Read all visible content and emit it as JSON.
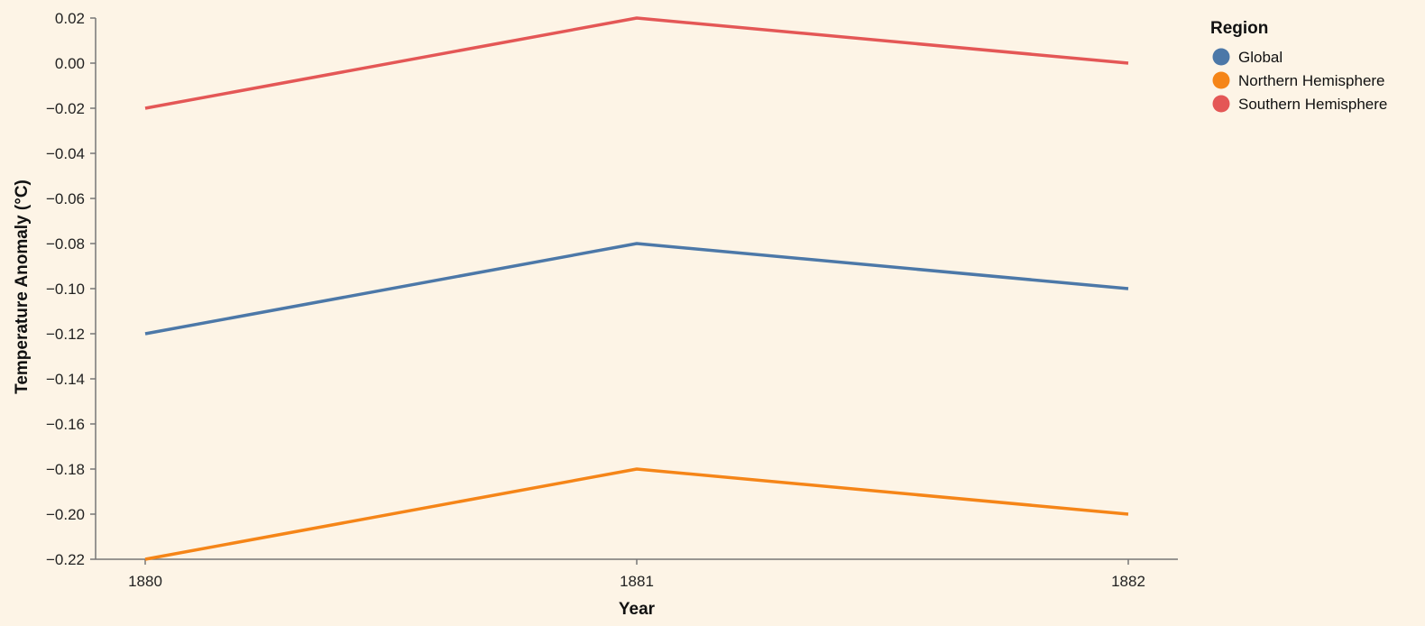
{
  "chart_data": {
    "type": "line",
    "title": "",
    "xlabel": "Year",
    "ylabel": "Temperature Anomaly (°C)",
    "x": [
      "1880",
      "1881",
      "1882"
    ],
    "ylim": [
      -0.22,
      0.02
    ],
    "yticks": [
      "0.02",
      "0.00",
      "−0.02",
      "−0.04",
      "−0.06",
      "−0.08",
      "−0.10",
      "−0.12",
      "−0.14",
      "−0.16",
      "−0.18",
      "−0.20",
      "−0.22"
    ],
    "grid": false,
    "legend": {
      "title": "Region",
      "position": "top-right"
    },
    "series": [
      {
        "name": "Global",
        "color": "#4c78a8",
        "values": [
          -0.12,
          -0.08,
          -0.1
        ]
      },
      {
        "name": "Northern Hemisphere",
        "color": "#f58518",
        "values": [
          -0.22,
          -0.18,
          -0.2
        ]
      },
      {
        "name": "Southern Hemisphere",
        "color": "#e45756",
        "values": [
          -0.02,
          0.02,
          0.0
        ]
      }
    ]
  }
}
